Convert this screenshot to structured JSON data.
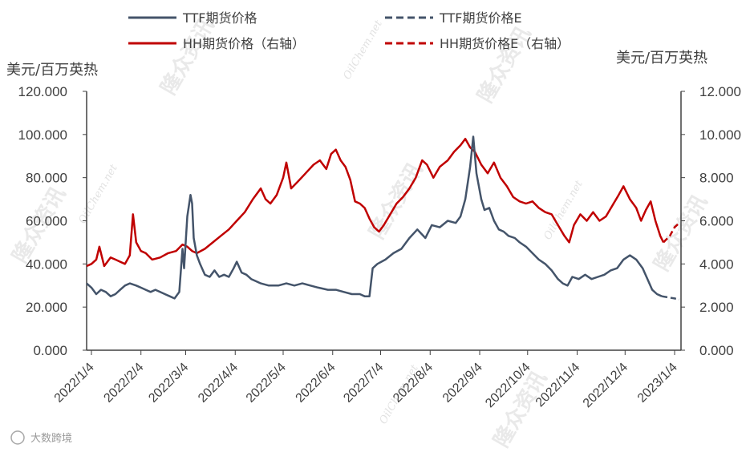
{
  "chart_data": {
    "type": "line",
    "title": "",
    "ylabel_left": "美元/百万英热",
    "ylabel_right": "美元/百万英热",
    "ylim_left": [
      0,
      120
    ],
    "ylim_right": [
      0,
      12
    ],
    "left_ticks": [
      "0.000",
      "20.000",
      "40.000",
      "60.000",
      "80.000",
      "100.000",
      "120.000"
    ],
    "right_ticks": [
      "0.000",
      "2.000",
      "4.000",
      "6.000",
      "8.000",
      "10.000",
      "12.000"
    ],
    "x_ticks": [
      "2022/1/4",
      "2022/2/4",
      "2022/3/4",
      "2022/4/4",
      "2022/5/4",
      "2022/6/4",
      "2022/7/4",
      "2022/8/4",
      "2022/9/4",
      "2022/10/4",
      "2022/11/4",
      "2022/12/4",
      "2023/1/4"
    ],
    "x_range": [
      "2022-01-01",
      "2023-01-08"
    ],
    "grid": false,
    "legend_position": "top",
    "watermark": {
      "brand": "隆众资讯",
      "site": "OilChem.net"
    },
    "footer": "大数跨境",
    "series": [
      {
        "name": "TTF期货价格",
        "axis": "left",
        "color": "#44546A",
        "style": "solid",
        "points": [
          [
            "2022-01-01",
            31
          ],
          [
            "2022-01-04",
            29
          ],
          [
            "2022-01-07",
            26
          ],
          [
            "2022-01-10",
            28
          ],
          [
            "2022-01-13",
            27
          ],
          [
            "2022-01-16",
            25
          ],
          [
            "2022-01-19",
            26
          ],
          [
            "2022-01-22",
            28
          ],
          [
            "2022-01-25",
            30
          ],
          [
            "2022-01-28",
            31
          ],
          [
            "2022-02-01",
            30
          ],
          [
            "2022-02-04",
            29
          ],
          [
            "2022-02-07",
            28
          ],
          [
            "2022-02-10",
            27
          ],
          [
            "2022-02-13",
            28
          ],
          [
            "2022-02-16",
            27
          ],
          [
            "2022-02-19",
            26
          ],
          [
            "2022-02-22",
            25
          ],
          [
            "2022-02-25",
            24
          ],
          [
            "2022-02-28",
            27
          ],
          [
            "2022-03-02",
            47
          ],
          [
            "2022-03-03",
            38
          ],
          [
            "2022-03-05",
            62
          ],
          [
            "2022-03-07",
            72
          ],
          [
            "2022-03-08",
            68
          ],
          [
            "2022-03-09",
            52
          ],
          [
            "2022-03-11",
            44
          ],
          [
            "2022-03-13",
            40
          ],
          [
            "2022-03-16",
            35
          ],
          [
            "2022-03-19",
            34
          ],
          [
            "2022-03-22",
            37
          ],
          [
            "2022-03-25",
            34
          ],
          [
            "2022-03-28",
            35
          ],
          [
            "2022-03-31",
            34
          ],
          [
            "2022-04-03",
            38
          ],
          [
            "2022-04-05",
            41
          ],
          [
            "2022-04-08",
            36
          ],
          [
            "2022-04-11",
            35
          ],
          [
            "2022-04-14",
            33
          ],
          [
            "2022-04-17",
            32
          ],
          [
            "2022-04-20",
            31
          ],
          [
            "2022-04-25",
            30
          ],
          [
            "2022-05-01",
            30
          ],
          [
            "2022-05-06",
            31
          ],
          [
            "2022-05-11",
            30
          ],
          [
            "2022-05-16",
            31
          ],
          [
            "2022-05-21",
            30
          ],
          [
            "2022-05-26",
            29
          ],
          [
            "2022-06-01",
            28
          ],
          [
            "2022-06-06",
            28
          ],
          [
            "2022-06-11",
            27
          ],
          [
            "2022-06-16",
            26
          ],
          [
            "2022-06-21",
            26
          ],
          [
            "2022-06-24",
            25
          ],
          [
            "2022-06-27",
            25
          ],
          [
            "2022-06-29",
            38
          ],
          [
            "2022-07-02",
            40
          ],
          [
            "2022-07-07",
            42
          ],
          [
            "2022-07-12",
            45
          ],
          [
            "2022-07-17",
            47
          ],
          [
            "2022-07-22",
            52
          ],
          [
            "2022-07-27",
            56
          ],
          [
            "2022-08-01",
            52
          ],
          [
            "2022-08-05",
            58
          ],
          [
            "2022-08-10",
            57
          ],
          [
            "2022-08-15",
            60
          ],
          [
            "2022-08-20",
            59
          ],
          [
            "2022-08-23",
            62
          ],
          [
            "2022-08-26",
            70
          ],
          [
            "2022-08-29",
            85
          ],
          [
            "2022-08-31",
            99
          ],
          [
            "2022-09-02",
            82
          ],
          [
            "2022-09-05",
            70
          ],
          [
            "2022-09-07",
            65
          ],
          [
            "2022-09-10",
            66
          ],
          [
            "2022-09-13",
            60
          ],
          [
            "2022-09-16",
            56
          ],
          [
            "2022-09-19",
            55
          ],
          [
            "2022-09-22",
            53
          ],
          [
            "2022-09-26",
            52
          ],
          [
            "2022-09-29",
            50
          ],
          [
            "2022-10-03",
            48
          ],
          [
            "2022-10-07",
            45
          ],
          [
            "2022-10-11",
            42
          ],
          [
            "2022-10-15",
            40
          ],
          [
            "2022-10-19",
            37
          ],
          [
            "2022-10-23",
            33
          ],
          [
            "2022-10-26",
            31
          ],
          [
            "2022-10-29",
            30
          ],
          [
            "2022-11-01",
            34
          ],
          [
            "2022-11-05",
            33
          ],
          [
            "2022-11-09",
            35
          ],
          [
            "2022-11-13",
            33
          ],
          [
            "2022-11-17",
            34
          ],
          [
            "2022-11-21",
            35
          ],
          [
            "2022-11-25",
            37
          ],
          [
            "2022-11-29",
            38
          ],
          [
            "2022-12-03",
            42
          ],
          [
            "2022-12-07",
            44
          ],
          [
            "2022-12-11",
            42
          ],
          [
            "2022-12-15",
            38
          ],
          [
            "2022-12-18",
            33
          ],
          [
            "2022-12-21",
            28
          ],
          [
            "2022-12-24",
            26
          ],
          [
            "2022-12-27",
            25
          ]
        ]
      },
      {
        "name": "TTF期货价格E",
        "axis": "left",
        "color": "#44546A",
        "style": "dashed",
        "points": [
          [
            "2022-12-27",
            25
          ],
          [
            "2022-12-31",
            24.5
          ],
          [
            "2023-01-04",
            24
          ],
          [
            "2023-01-07",
            23.5
          ]
        ]
      },
      {
        "name": "HH期货价格（右轴）",
        "axis": "right",
        "color": "#C00000",
        "style": "solid",
        "points": [
          [
            "2022-01-01",
            3.9
          ],
          [
            "2022-01-04",
            4.0
          ],
          [
            "2022-01-07",
            4.2
          ],
          [
            "2022-01-09",
            4.8
          ],
          [
            "2022-01-12",
            3.9
          ],
          [
            "2022-01-16",
            4.3
          ],
          [
            "2022-01-19",
            4.2
          ],
          [
            "2022-01-22",
            4.1
          ],
          [
            "2022-01-25",
            4.0
          ],
          [
            "2022-01-28",
            4.4
          ],
          [
            "2022-01-30",
            6.3
          ],
          [
            "2022-02-01",
            5.0
          ],
          [
            "2022-02-04",
            4.6
          ],
          [
            "2022-02-07",
            4.5
          ],
          [
            "2022-02-11",
            4.2
          ],
          [
            "2022-02-16",
            4.3
          ],
          [
            "2022-02-21",
            4.5
          ],
          [
            "2022-02-26",
            4.6
          ],
          [
            "2022-03-02",
            4.9
          ],
          [
            "2022-03-05",
            4.8
          ],
          [
            "2022-03-08",
            4.6
          ],
          [
            "2022-03-11",
            4.5
          ],
          [
            "2022-03-16",
            4.7
          ],
          [
            "2022-03-21",
            5.0
          ],
          [
            "2022-03-26",
            5.3
          ],
          [
            "2022-03-31",
            5.6
          ],
          [
            "2022-04-05",
            6.0
          ],
          [
            "2022-04-10",
            6.4
          ],
          [
            "2022-04-15",
            7.0
          ],
          [
            "2022-04-20",
            7.5
          ],
          [
            "2022-04-23",
            7.0
          ],
          [
            "2022-04-26",
            6.8
          ],
          [
            "2022-04-30",
            7.2
          ],
          [
            "2022-05-04",
            8.0
          ],
          [
            "2022-05-06",
            8.7
          ],
          [
            "2022-05-09",
            7.5
          ],
          [
            "2022-05-13",
            7.8
          ],
          [
            "2022-05-18",
            8.2
          ],
          [
            "2022-05-23",
            8.6
          ],
          [
            "2022-05-27",
            8.8
          ],
          [
            "2022-05-31",
            8.4
          ],
          [
            "2022-06-03",
            9.1
          ],
          [
            "2022-06-06",
            9.3
          ],
          [
            "2022-06-09",
            8.8
          ],
          [
            "2022-06-12",
            8.5
          ],
          [
            "2022-06-15",
            7.9
          ],
          [
            "2022-06-18",
            6.9
          ],
          [
            "2022-06-21",
            6.8
          ],
          [
            "2022-06-24",
            6.6
          ],
          [
            "2022-06-27",
            6.1
          ],
          [
            "2022-06-30",
            5.7
          ],
          [
            "2022-07-03",
            5.5
          ],
          [
            "2022-07-06",
            5.8
          ],
          [
            "2022-07-10",
            6.3
          ],
          [
            "2022-07-14",
            6.8
          ],
          [
            "2022-07-18",
            7.1
          ],
          [
            "2022-07-22",
            7.5
          ],
          [
            "2022-07-26",
            8.0
          ],
          [
            "2022-07-30",
            8.8
          ],
          [
            "2022-08-02",
            8.6
          ],
          [
            "2022-08-06",
            8.0
          ],
          [
            "2022-08-10",
            8.5
          ],
          [
            "2022-08-15",
            8.8
          ],
          [
            "2022-08-19",
            9.2
          ],
          [
            "2022-08-23",
            9.5
          ],
          [
            "2022-08-26",
            9.8
          ],
          [
            "2022-08-29",
            9.4
          ],
          [
            "2022-09-01",
            9.2
          ],
          [
            "2022-09-05",
            8.6
          ],
          [
            "2022-09-09",
            8.2
          ],
          [
            "2022-09-13",
            8.7
          ],
          [
            "2022-09-17",
            8.0
          ],
          [
            "2022-09-21",
            7.6
          ],
          [
            "2022-09-25",
            7.1
          ],
          [
            "2022-09-29",
            6.9
          ],
          [
            "2022-10-03",
            6.8
          ],
          [
            "2022-10-07",
            6.9
          ],
          [
            "2022-10-11",
            6.6
          ],
          [
            "2022-10-15",
            6.4
          ],
          [
            "2022-10-19",
            6.3
          ],
          [
            "2022-10-23",
            5.8
          ],
          [
            "2022-10-27",
            5.3
          ],
          [
            "2022-10-30",
            5.0
          ],
          [
            "2022-11-02",
            5.8
          ],
          [
            "2022-11-06",
            6.3
          ],
          [
            "2022-11-10",
            6.0
          ],
          [
            "2022-11-14",
            6.4
          ],
          [
            "2022-11-18",
            6.0
          ],
          [
            "2022-11-22",
            6.2
          ],
          [
            "2022-11-26",
            6.7
          ],
          [
            "2022-11-30",
            7.2
          ],
          [
            "2022-12-03",
            7.6
          ],
          [
            "2022-12-07",
            7.0
          ],
          [
            "2022-12-11",
            6.6
          ],
          [
            "2022-12-14",
            6.0
          ],
          [
            "2022-12-17",
            6.5
          ],
          [
            "2022-12-20",
            6.9
          ],
          [
            "2022-12-23",
            6.0
          ],
          [
            "2022-12-26",
            5.3
          ],
          [
            "2022-12-28",
            5.0
          ]
        ]
      },
      {
        "name": "HH期货价格E（右轴）",
        "axis": "right",
        "color": "#C00000",
        "style": "dashed",
        "points": [
          [
            "2022-12-28",
            5.0
          ],
          [
            "2023-01-01",
            5.3
          ],
          [
            "2023-01-04",
            5.7
          ],
          [
            "2023-01-07",
            5.9
          ]
        ]
      }
    ]
  }
}
